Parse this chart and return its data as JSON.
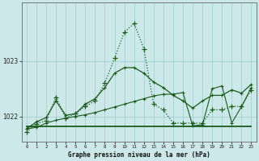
{
  "title": "Graphe pression niveau de la mer (hPa)",
  "bg_color": "#cce8e8",
  "grid_color": "#99cccc",
  "line_color": "#1a5c1a",
  "x_labels": [
    "0",
    "1",
    "2",
    "3",
    "4",
    "5",
    "6",
    "7",
    "8",
    "9",
    "10",
    "11",
    "12",
    "13",
    "14",
    "15",
    "16",
    "17",
    "18",
    "19",
    "20",
    "21",
    "22",
    "23"
  ],
  "yticks": [
    1022,
    1023
  ],
  "ylim": [
    1021.55,
    1024.05
  ],
  "series": {
    "line_dotted": [
      1021.72,
      1021.87,
      1021.92,
      1022.35,
      1021.97,
      1022.05,
      1022.18,
      1022.28,
      1022.6,
      1023.05,
      1023.52,
      1023.68,
      1023.22,
      1022.22,
      1022.12,
      1021.88,
      1021.88,
      1021.88,
      1021.88,
      1022.12,
      1022.12,
      1022.18,
      1022.18,
      1022.48
    ],
    "line_smooth": [
      1021.78,
      1021.9,
      1021.98,
      1022.28,
      1022.02,
      1022.05,
      1022.22,
      1022.32,
      1022.52,
      1022.78,
      1022.88,
      1022.88,
      1022.78,
      1022.62,
      1022.52,
      1022.38,
      1022.28,
      1022.15,
      1022.28,
      1022.38,
      1022.38,
      1022.48,
      1022.42,
      1022.58
    ],
    "line_flat": [
      1021.82,
      1021.82,
      1021.82,
      1021.82,
      1021.82,
      1021.82,
      1021.82,
      1021.82,
      1021.82,
      1021.82,
      1021.82,
      1021.82,
      1021.82,
      1021.82,
      1021.82,
      1021.82,
      1021.82,
      1021.82,
      1021.82,
      1021.82,
      1021.82,
      1021.82,
      1021.82,
      1021.82
    ],
    "line_rising": [
      1021.78,
      1021.8,
      1021.88,
      1021.93,
      1021.97,
      1022.0,
      1022.03,
      1022.07,
      1022.12,
      1022.17,
      1022.22,
      1022.27,
      1022.32,
      1022.37,
      1022.4,
      1022.4,
      1022.43,
      1021.83,
      1021.85,
      1022.5,
      1022.55,
      1021.88,
      1022.18,
      1022.52
    ]
  }
}
